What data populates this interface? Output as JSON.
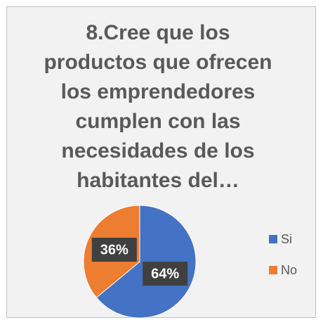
{
  "chart_data": {
    "type": "pie",
    "title": "8.Cree que los productos que ofrecen los emprendedores cumplen con las necesidades de los habitantes del…",
    "categories": [
      "Si",
      "No"
    ],
    "values": [
      64,
      36
    ],
    "value_labels": [
      "64%",
      "36%"
    ],
    "colors": [
      "#4472c4",
      "#ed7d31"
    ],
    "legend": "right"
  }
}
